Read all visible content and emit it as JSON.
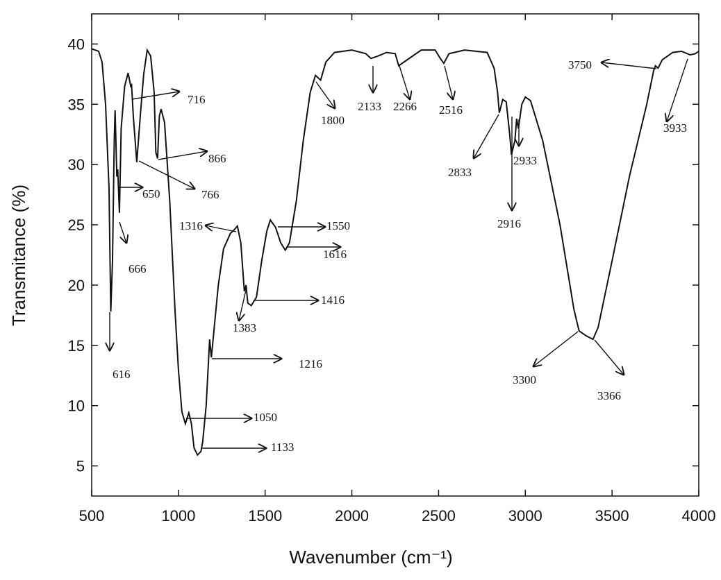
{
  "chart_data": {
    "type": "line",
    "xlabel": "Wavenumber (cm⁻¹)",
    "ylabel": "Transmitance (%)",
    "xlim": [
      500,
      4000
    ],
    "ylim": [
      2.5,
      42.5
    ],
    "xticks": [
      500,
      1000,
      1500,
      2000,
      2500,
      3000,
      3500,
      4000
    ],
    "yticks": [
      5,
      10,
      15,
      20,
      25,
      30,
      35,
      40
    ],
    "x": [
      500,
      540,
      560,
      580,
      600,
      610,
      620,
      630,
      635,
      645,
      650,
      660,
      670,
      690,
      710,
      725,
      730,
      740,
      760,
      780,
      800,
      820,
      840,
      860,
      870,
      880,
      890,
      900,
      920,
      950,
      980,
      1000,
      1020,
      1040,
      1060,
      1075,
      1090,
      1110,
      1130,
      1140,
      1160,
      1180,
      1190,
      1200,
      1230,
      1260,
      1300,
      1316,
      1340,
      1360,
      1380,
      1390,
      1400,
      1420,
      1450,
      1480,
      1510,
      1530,
      1560,
      1590,
      1616,
      1640,
      1680,
      1720,
      1760,
      1790,
      1820,
      1850,
      1900,
      2000,
      2080,
      2110,
      2150,
      2200,
      2250,
      2270,
      2300,
      2400,
      2480,
      2510,
      2530,
      2560,
      2650,
      2780,
      2820,
      2840,
      2850,
      2870,
      2890,
      2910,
      2920,
      2940,
      2950,
      2960,
      2980,
      3000,
      3030,
      3100,
      3200,
      3280,
      3310,
      3350,
      3390,
      3420,
      3500,
      3600,
      3700,
      3740,
      3750,
      3765,
      3790,
      3850,
      3900,
      3950,
      3980,
      4000
    ],
    "series": [
      {
        "color": "#111111",
        "values": [
          39.6,
          39.4,
          38.5,
          35,
          28,
          17.8,
          22,
          32,
          34.5,
          29,
          29.6,
          26,
          33,
          36.5,
          37.6,
          36.5,
          36.6,
          34,
          30.2,
          34,
          37.5,
          39.5,
          39,
          36,
          31,
          30.5,
          34,
          34.6,
          33.5,
          27,
          18,
          13,
          9.5,
          8.5,
          9.4,
          8.5,
          6.5,
          5.9,
          6.2,
          7,
          10,
          15.5,
          14,
          15.5,
          20,
          23,
          24.3,
          24.5,
          24.9,
          23.5,
          19.5,
          20,
          18.5,
          18.3,
          19,
          22,
          24.5,
          25.4,
          24.8,
          23.5,
          22.9,
          23.5,
          27,
          32,
          36,
          37.4,
          37,
          38.5,
          39.3,
          39.5,
          39.2,
          38.8,
          39,
          39.3,
          39.2,
          38.2,
          38.5,
          39.5,
          39.5,
          38.8,
          38.4,
          39.2,
          39.5,
          39.3,
          38,
          36,
          34.3,
          35.4,
          35.2,
          32.5,
          30.8,
          32,
          33.8,
          33,
          35,
          35.6,
          35.3,
          32,
          25,
          18,
          16.2,
          15.8,
          15.5,
          16.5,
          22,
          29,
          35,
          37.8,
          38.2,
          38,
          38.7,
          39.3,
          39.4,
          39.1,
          39.2,
          39.4
        ]
      }
    ],
    "annotations": [
      "716",
      "866",
      "650",
      "766",
      "666",
      "616",
      "1316",
      "1550",
      "1616",
      "1416",
      "1383",
      "1216",
      "1050",
      "1133",
      "1800",
      "2133",
      "2266",
      "2516",
      "2833",
      "2916",
      "2933",
      "3750",
      "3933",
      "3300",
      "3366"
    ]
  }
}
